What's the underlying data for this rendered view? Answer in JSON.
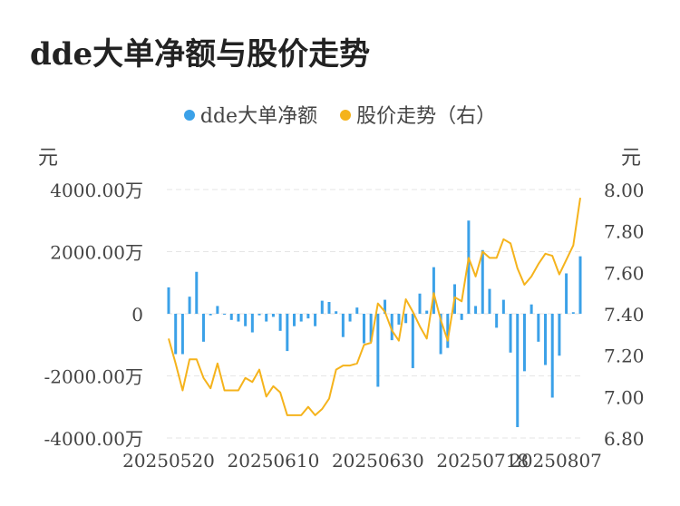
{
  "title": "dde大单净额与股价走势",
  "legend": [
    {
      "label": "dde大单净额",
      "color": "#3ba1e8"
    },
    {
      "label": "股价走势（右）",
      "color": "#f5b31c"
    }
  ],
  "chart_data": {
    "type": "bar+line",
    "title": "dde大单净额与股价走势",
    "left_unit": "元",
    "right_unit": "元",
    "grid": "horizontal dashed",
    "legend_position": "top-center",
    "left_axis": {
      "ylim": [
        -4000,
        4000
      ],
      "ticks": [
        4000,
        2000,
        0,
        -2000,
        -4000
      ],
      "tick_labels": [
        "4000.00万",
        "2000.00万",
        "0",
        "-2000.00万",
        "-4000.00万"
      ]
    },
    "right_axis": {
      "ylim": [
        6.8,
        8.0
      ],
      "ticks": [
        8.0,
        7.8,
        7.6,
        7.4,
        7.2,
        7.0,
        6.8
      ],
      "tick_labels": [
        "8.00",
        "7.80",
        "7.60",
        "7.40",
        "7.20",
        "7.00",
        "6.80"
      ]
    },
    "x_tick_labels": [
      {
        "index": 0,
        "label": "20250520"
      },
      {
        "index": 15,
        "label": "20250610"
      },
      {
        "index": 30,
        "label": "20250630"
      },
      {
        "index": 45,
        "label": "20250718"
      },
      {
        "index": 60,
        "label": "20250807"
      }
    ],
    "series": [
      {
        "name": "dde大单净额",
        "type": "bar",
        "color": "#3ba1e8",
        "values": [
          850,
          -1300,
          -1300,
          550,
          1350,
          -900,
          -50,
          250,
          -30,
          -200,
          -250,
          -400,
          -600,
          -50,
          -250,
          -100,
          -550,
          -1200,
          -400,
          -250,
          -150,
          -400,
          420,
          380,
          80,
          -750,
          -250,
          200,
          -950,
          -900,
          -2350,
          450,
          -850,
          -350,
          -300,
          -1750,
          650,
          100,
          1500,
          -1300,
          -1100,
          950,
          -200,
          3000,
          250,
          2050,
          800,
          -450,
          450,
          -1250,
          -3650,
          -1850,
          300,
          -900,
          -1650,
          -2700,
          -1350,
          1300,
          50,
          1850
        ]
      },
      {
        "name": "股价走势（右）",
        "type": "line",
        "color": "#f5b31c",
        "values": [
          7.28,
          7.16,
          7.03,
          7.18,
          7.18,
          7.09,
          7.04,
          7.16,
          7.03,
          7.03,
          7.03,
          7.09,
          7.07,
          7.13,
          7.0,
          7.05,
          7.02,
          6.91,
          6.91,
          6.91,
          6.95,
          6.91,
          6.94,
          6.99,
          7.13,
          7.15,
          7.15,
          7.16,
          7.25,
          7.26,
          7.45,
          7.41,
          7.32,
          7.27,
          7.47,
          7.41,
          7.34,
          7.28,
          7.5,
          7.37,
          7.27,
          7.48,
          7.46,
          7.67,
          7.58,
          7.7,
          7.67,
          7.67,
          7.76,
          7.74,
          7.62,
          7.54,
          7.58,
          7.64,
          7.69,
          7.68,
          7.59,
          7.66,
          7.73,
          7.96
        ]
      }
    ]
  }
}
